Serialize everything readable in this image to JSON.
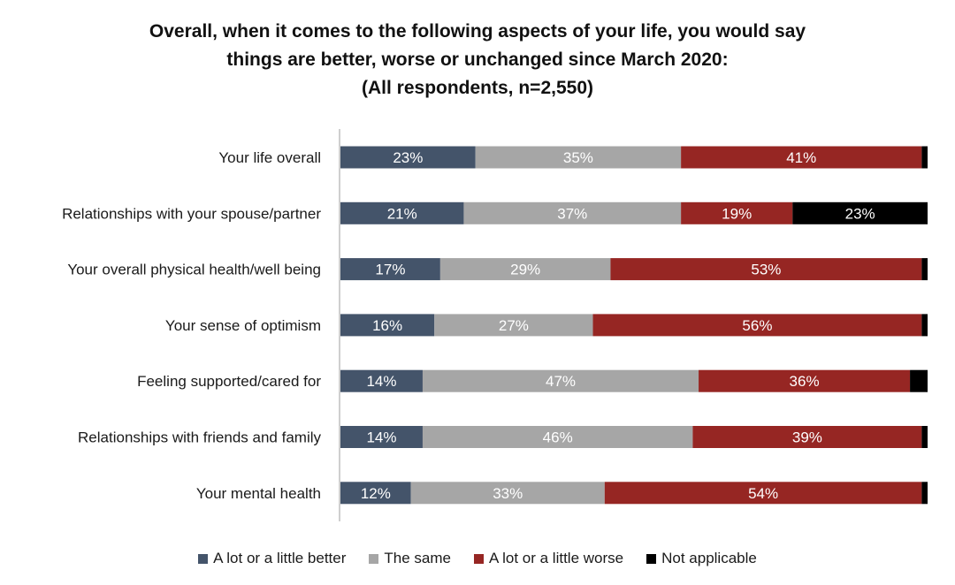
{
  "chart_data": {
    "type": "bar",
    "orientation": "horizontal",
    "stacked": true,
    "title_lines": [
      "Overall, when it comes to the following aspects of your life, you would say",
      "things are better, worse or unchanged since March 2020:",
      "(All respondents,  n=2,550)"
    ],
    "xlim": [
      0,
      100
    ],
    "grid": false,
    "legend_position": "bottom",
    "categories": [
      "Your life overall",
      "Relationships with your spouse/partner",
      "Your overall physical health/well being",
      "Your sense of optimism",
      "Feeling supported/cared for",
      "Relationships with friends and family",
      "Your mental health"
    ],
    "series": [
      {
        "name": "A lot or a little better",
        "color": "#44546a",
        "values": [
          23,
          21,
          17,
          16,
          14,
          14,
          12
        ],
        "labels": [
          "23%",
          "21%",
          "17%",
          "16%",
          "14%",
          "14%",
          "12%"
        ]
      },
      {
        "name": "The same",
        "color": "#a6a6a6",
        "values": [
          35,
          37,
          29,
          27,
          47,
          46,
          33
        ],
        "labels": [
          "35%",
          "37%",
          "29%",
          "27%",
          "47%",
          "46%",
          "33%"
        ]
      },
      {
        "name": "A lot or a little worse",
        "color": "#962623",
        "values": [
          41,
          19,
          53,
          56,
          36,
          39,
          54
        ],
        "labels": [
          "41%",
          "19%",
          "53%",
          "56%",
          "36%",
          "39%",
          "54%"
        ]
      },
      {
        "name": "Not applicable",
        "color": "#000000",
        "values": [
          1,
          23,
          1,
          1,
          3,
          1,
          1
        ],
        "labels": [
          "",
          "23%",
          "",
          "",
          "",
          "",
          ""
        ]
      }
    ]
  }
}
